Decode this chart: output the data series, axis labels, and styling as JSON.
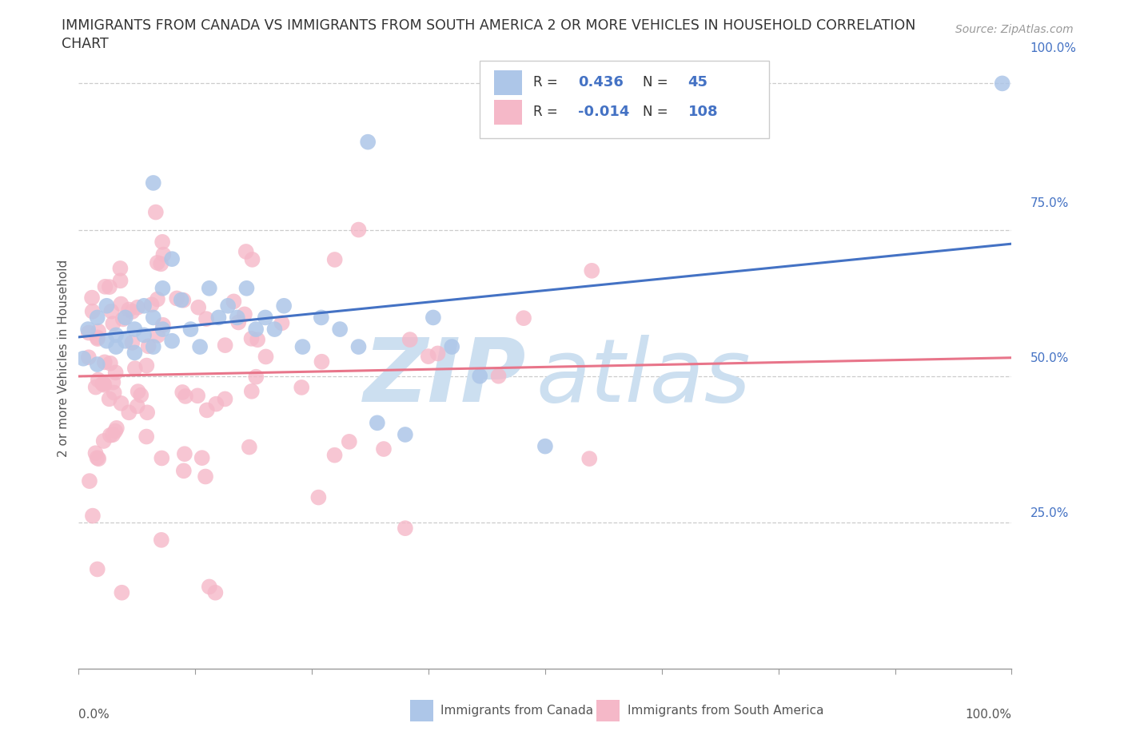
{
  "title_line1": "IMMIGRANTS FROM CANADA VS IMMIGRANTS FROM SOUTH AMERICA 2 OR MORE VEHICLES IN HOUSEHOLD CORRELATION",
  "title_line2": "CHART",
  "source": "Source: ZipAtlas.com",
  "canada_R": 0.436,
  "canada_N": 45,
  "southam_R": -0.014,
  "southam_N": 108,
  "canada_color": "#adc6e8",
  "southam_color": "#f5b8c8",
  "canada_line_color": "#4472c4",
  "southam_line_color": "#e8758a",
  "watermark_color": "#ccdff0",
  "ylabel_ticks": [
    0.25,
    0.5,
    0.75,
    1.0
  ],
  "ylabel_labels": [
    "25.0%",
    "50.0%",
    "75.0%",
    "100.0%"
  ],
  "grid_color": "#cccccc",
  "axis_color": "#999999",
  "title_color": "#333333",
  "source_color": "#999999",
  "legend_text_color": "#4472c4",
  "bottom_label_color": "#555555"
}
